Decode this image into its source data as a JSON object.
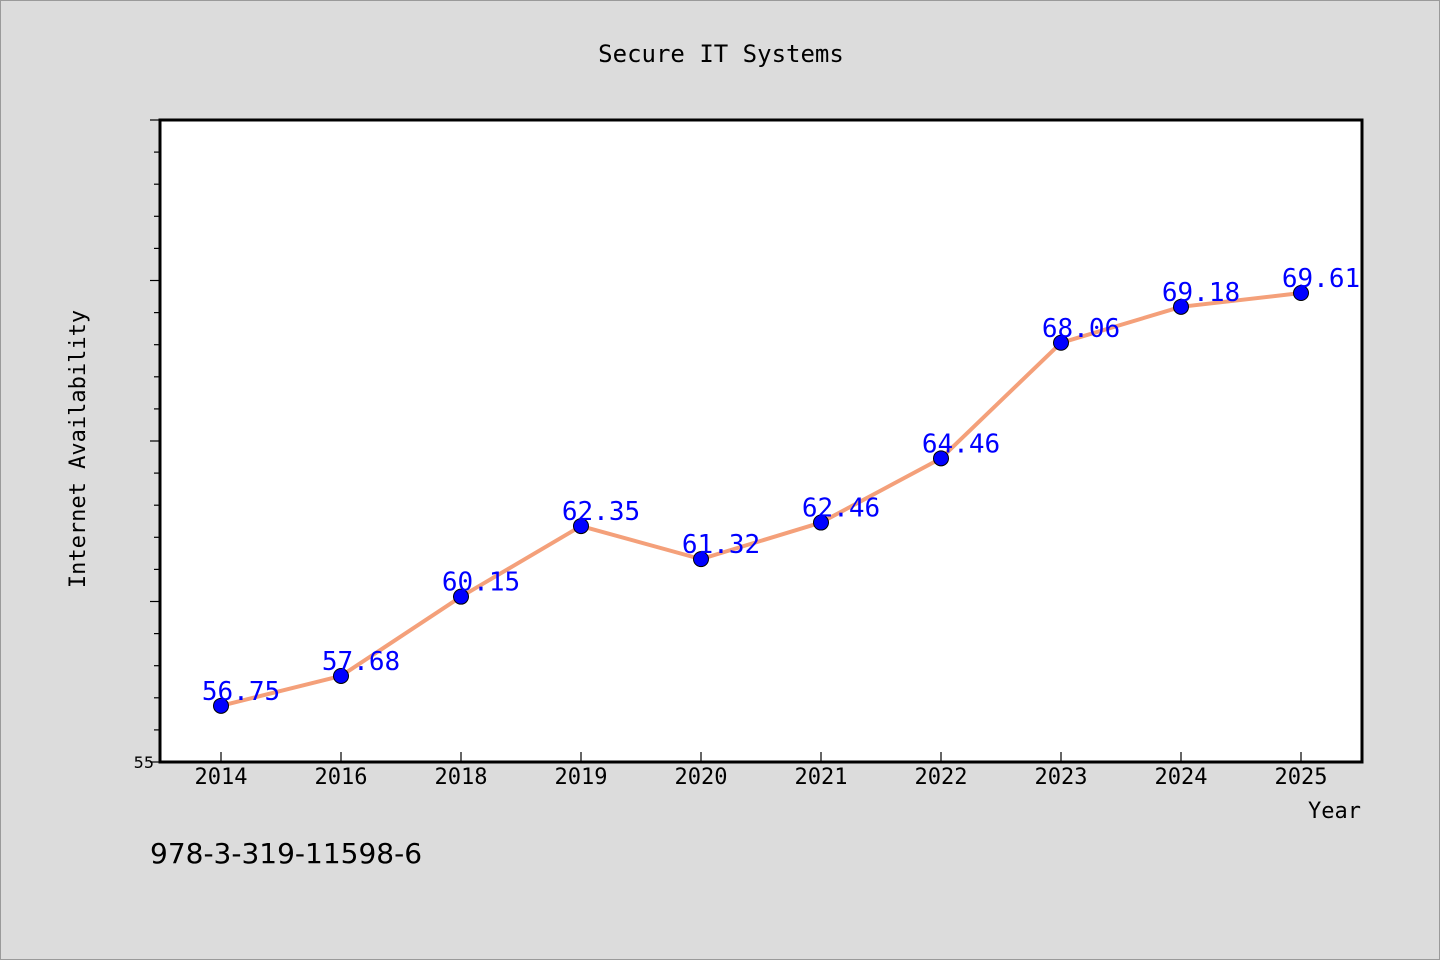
{
  "chart_data": {
    "type": "line",
    "title": "Secure IT Systems",
    "xlabel": "Year",
    "ylabel": "Internet Availability",
    "categories": [
      "2014",
      "2016",
      "2018",
      "2019",
      "2020",
      "2021",
      "2022",
      "2023",
      "2024",
      "2025"
    ],
    "series": [
      {
        "values": [
          56.75,
          57.68,
          60.15,
          62.35,
          61.32,
          62.46,
          64.46,
          68.06,
          69.18,
          69.61
        ],
        "data_labels": [
          "56.75",
          "57.68",
          "60.15",
          "62.35",
          "61.32",
          "62.46",
          "64.46",
          "68.06",
          "69.18",
          "69.61"
        ],
        "line_color": "#f4a07a",
        "marker_color": "#0000ff",
        "label_color": "#0000ff"
      }
    ],
    "ylim": [
      55,
      75
    ],
    "ytick_major_step": 5,
    "ytick_minor_step": 1,
    "y_visible_tick_labels": [
      "55"
    ],
    "grid": false,
    "legend": "none"
  },
  "footer": {
    "isbn": "978-3-319-11598-6"
  },
  "colors": {
    "background": "#dcdcdc",
    "plot_background": "#ffffff",
    "axis": "#000000"
  }
}
